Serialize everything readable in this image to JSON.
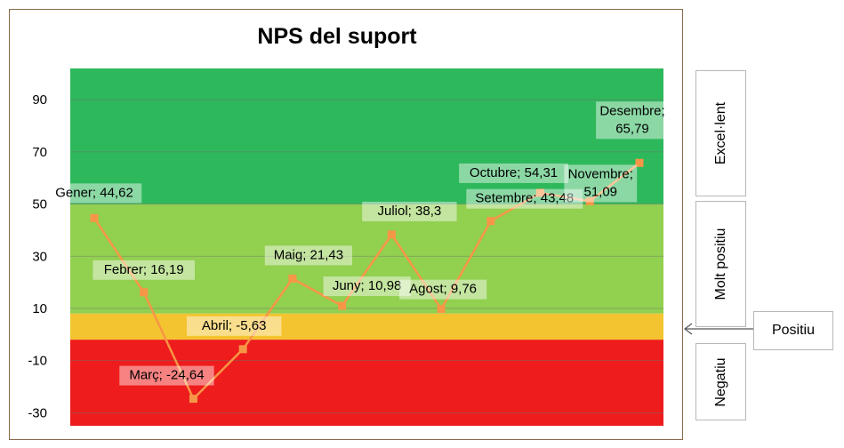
{
  "chart_data": {
    "type": "line",
    "title": "NPS del suport",
    "xlabel": "",
    "ylabel": "",
    "ylim": [
      -35,
      102
    ],
    "yticks": [
      90,
      70,
      50,
      30,
      10,
      -10,
      -30
    ],
    "grid": true,
    "categories": [
      "Gener",
      "Febrer",
      "Març",
      "Abril",
      "Maig",
      "Juny",
      "Juliol",
      "Agost",
      "Setembre",
      "Octubre",
      "Novembre",
      "Desembre"
    ],
    "series": [
      {
        "values": [
          44.62,
          16.19,
          -24.64,
          -5.63,
          21.43,
          10.98,
          38.3,
          9.76,
          43.48,
          54.31,
          51.09,
          65.79
        ],
        "color": "#f79646"
      }
    ],
    "data_labels": [
      "Gener; 44,62",
      "Febrer; 16,19",
      "Març; -24,64",
      "Abril; -5,63",
      "Maig; 21,43",
      "Juny; 10,98",
      "Juliol; 38,3",
      "Agost; 9,76",
      "Setembre; 43,48",
      "Octubre; 54,31",
      "Novembre;\n51,09",
      "Desembre;\n65,79"
    ],
    "bands": [
      {
        "name": "Excel·lent",
        "from": 50,
        "to": 102,
        "color": "#2eb85c"
      },
      {
        "name": "Molt positiu",
        "from": 8,
        "to": 50,
        "color": "#92d050"
      },
      {
        "name": "Positiu",
        "from": -2,
        "to": 8,
        "color": "#f4c430"
      },
      {
        "name": "Negatiu",
        "from": -35,
        "to": -2,
        "color": "#ee1c1c"
      }
    ]
  }
}
